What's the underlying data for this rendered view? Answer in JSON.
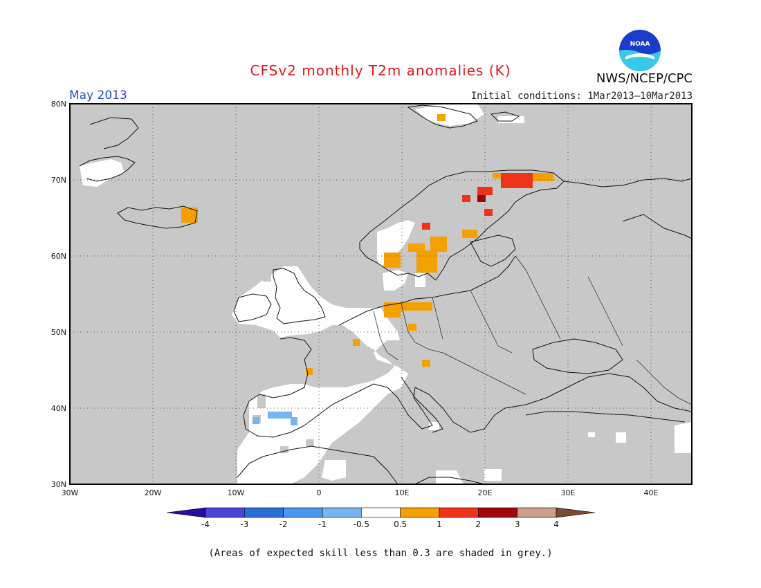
{
  "header": {
    "title": "CFSv2 monthly T2m anomalies (K)",
    "month": "May 2013",
    "initial_conditions": "Initial conditions: 1Mar2013–10Mar2013",
    "agency": "NWS/NCEP/CPC",
    "logo_text": "NOAA"
  },
  "map": {
    "lat_labels": [
      "80N",
      "70N",
      "60N",
      "50N",
      "40N",
      "30N"
    ],
    "lon_labels": [
      "30W",
      "20W",
      "10W",
      "0",
      "10E",
      "20E",
      "30E",
      "40E"
    ],
    "colors": {
      "skill_grey": "#c8c8c8",
      "ocean_land_neutral": "#ffffff",
      "grid": "#555555"
    },
    "regions": [
      {
        "name": "iceland-east",
        "color": "#f4a000"
      },
      {
        "name": "scandinavia-north",
        "color": "#f03218"
      },
      {
        "name": "scandinavia-south",
        "color": "#f4a000"
      },
      {
        "name": "germany-poland",
        "color": "#f4a000"
      },
      {
        "name": "iberia",
        "color": "#78b4f0"
      }
    ]
  },
  "colorbar": {
    "colors": [
      "#2a0aa0",
      "#4a44d8",
      "#2a6ed8",
      "#4a96f0",
      "#78b4f0",
      "#ffffff",
      "#f4a000",
      "#f03218",
      "#a0050a",
      "#c8a08c",
      "#7a4a32"
    ],
    "labels": [
      "-4",
      "-3",
      "-2",
      "-1",
      "-0.5",
      "0.5",
      "1",
      "2",
      "3",
      "4"
    ]
  },
  "footnote": "(Areas of expected skill less than 0.3 are shaded in grey.)"
}
